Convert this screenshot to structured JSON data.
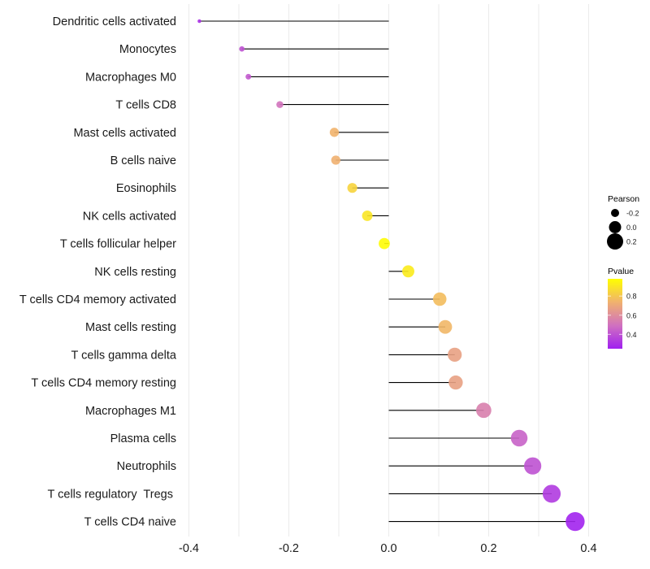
{
  "chart_data": {
    "type": "lollipop",
    "title": "",
    "xlabel": "",
    "ylabel": "",
    "xlim": [
      -0.4,
      0.4
    ],
    "x_ticks": [
      -0.4,
      -0.2,
      0.0,
      0.2,
      0.4
    ],
    "x_tick_labels": [
      "-0.4",
      "-0.2",
      "0.0",
      "0.2",
      "0.4"
    ],
    "grid": "vertical major and minor gridlines (every 0.1)",
    "baseline": 0.0,
    "categories": [
      "Dendritic cells activated",
      "Monocytes",
      "Macrophages M0",
      "T cells CD8",
      "Mast cells activated",
      "B cells naive",
      "Eosinophils",
      "NK cells activated",
      "T cells follicular helper",
      "NK cells resting",
      "T cells CD4 memory activated",
      "Mast cells resting",
      "T cells gamma delta",
      "T cells CD4 memory resting",
      "Macrophages M1",
      "Plasma cells",
      "Neutrophils",
      "T cells regulatory  Tregs ",
      "T cells CD4 naive"
    ],
    "series": [
      {
        "name": "Pearson",
        "values": [
          -0.379,
          -0.294,
          -0.281,
          -0.218,
          -0.109,
          -0.106,
          -0.073,
          -0.043,
          -0.009,
          0.039,
          0.102,
          0.113,
          0.132,
          0.134,
          0.19,
          0.261,
          0.288,
          0.326,
          0.373
        ]
      },
      {
        "name": "Pvalue",
        "values": [
          0.3,
          0.4,
          0.42,
          0.5,
          0.75,
          0.74,
          0.85,
          0.9,
          0.97,
          0.92,
          0.78,
          0.76,
          0.68,
          0.68,
          0.55,
          0.45,
          0.4,
          0.33,
          0.26
        ]
      }
    ],
    "legend": {
      "placement": "right",
      "size_legend": {
        "title": "Pearson",
        "entries": [
          {
            "label": "-0.2",
            "value": -0.2
          },
          {
            "label": "0.0",
            "value": 0.0
          },
          {
            "label": "0.2",
            "value": 0.2
          }
        ]
      },
      "color_legend": {
        "title": "Pvalue",
        "range": [
          0.25,
          0.98
        ],
        "ticks": [
          {
            "label": "0.8",
            "value": 0.8
          },
          {
            "label": "0.6",
            "value": 0.6
          },
          {
            "label": "0.4",
            "value": 0.4
          }
        ],
        "gradient": [
          "#A020F0",
          "#D070C0",
          "#F0B070",
          "#FFFF00"
        ]
      }
    },
    "colors": {
      "segment": "#000000",
      "gridline": "#ebebeb",
      "low_pvalue": "#A020F0",
      "high_pvalue": "#FFFF00"
    }
  }
}
